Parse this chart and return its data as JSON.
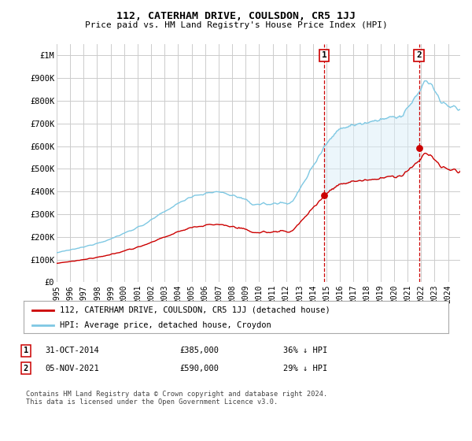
{
  "title": "112, CATERHAM DRIVE, COULSDON, CR5 1JJ",
  "subtitle": "Price paid vs. HM Land Registry's House Price Index (HPI)",
  "ylabel_ticks": [
    "£0",
    "£100K",
    "£200K",
    "£300K",
    "£400K",
    "£500K",
    "£600K",
    "£700K",
    "£800K",
    "£900K",
    "£1M"
  ],
  "ytick_values": [
    0,
    100000,
    200000,
    300000,
    400000,
    500000,
    600000,
    700000,
    800000,
    900000,
    1000000
  ],
  "ylim": [
    0,
    1050000
  ],
  "xlim_start": 1995.0,
  "xlim_end": 2024.9,
  "sale1_date": 2014.833,
  "sale1_price": 385000,
  "sale1_label": "1",
  "sale2_date": 2021.846,
  "sale2_price": 590000,
  "sale2_label": "2",
  "hpi_color": "#7ec8e3",
  "hpi_fill_color": "#daeef8",
  "price_color": "#cc0000",
  "vline_color": "#cc0000",
  "dot_color": "#cc0000",
  "grid_color": "#cccccc",
  "background_color": "#ffffff",
  "legend_label_price": "112, CATERHAM DRIVE, COULSDON, CR5 1JJ (detached house)",
  "legend_label_hpi": "HPI: Average price, detached house, Croydon",
  "footer": "Contains HM Land Registry data © Crown copyright and database right 2024.\nThis data is licensed under the Open Government Licence v3.0.",
  "xtick_years": [
    1995,
    1996,
    1997,
    1998,
    1999,
    2000,
    2001,
    2002,
    2003,
    2004,
    2005,
    2006,
    2007,
    2008,
    2009,
    2010,
    2011,
    2012,
    2013,
    2014,
    2015,
    2016,
    2017,
    2018,
    2019,
    2020,
    2021,
    2022,
    2023,
    2024
  ]
}
